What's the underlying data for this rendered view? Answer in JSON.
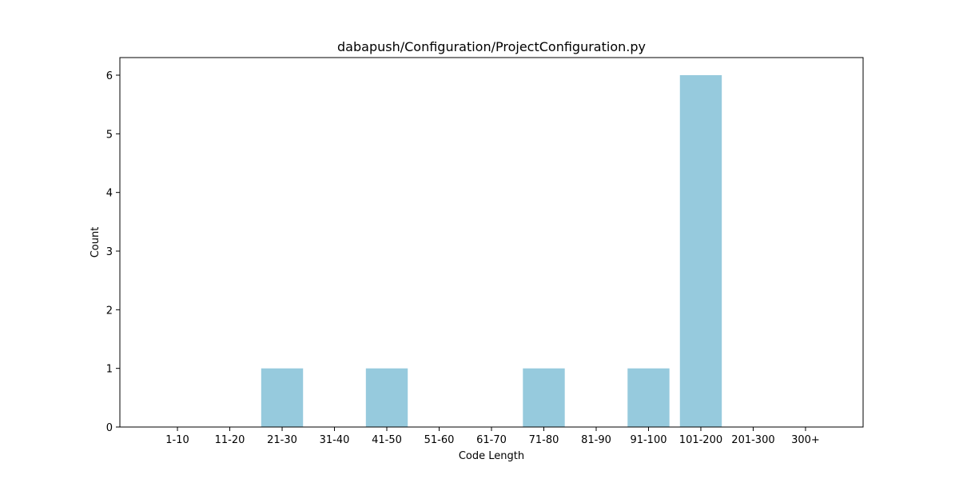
{
  "chart_data": {
    "type": "bar",
    "title": "dabapush/Configuration/ProjectConfiguration.py",
    "xlabel": "Code Length",
    "ylabel": "Count",
    "categories": [
      "1-10",
      "11-20",
      "21-30",
      "31-40",
      "41-50",
      "51-60",
      "61-70",
      "71-80",
      "81-90",
      "91-100",
      "101-200",
      "201-300",
      "300+"
    ],
    "values": [
      0,
      0,
      1,
      0,
      1,
      0,
      0,
      1,
      0,
      1,
      6,
      0,
      0
    ],
    "yticks": [
      0,
      1,
      2,
      3,
      4,
      5,
      6
    ],
    "ylim": [
      0,
      6.3
    ],
    "grid": false,
    "legend": "none",
    "bar_color": "#96cadd"
  }
}
